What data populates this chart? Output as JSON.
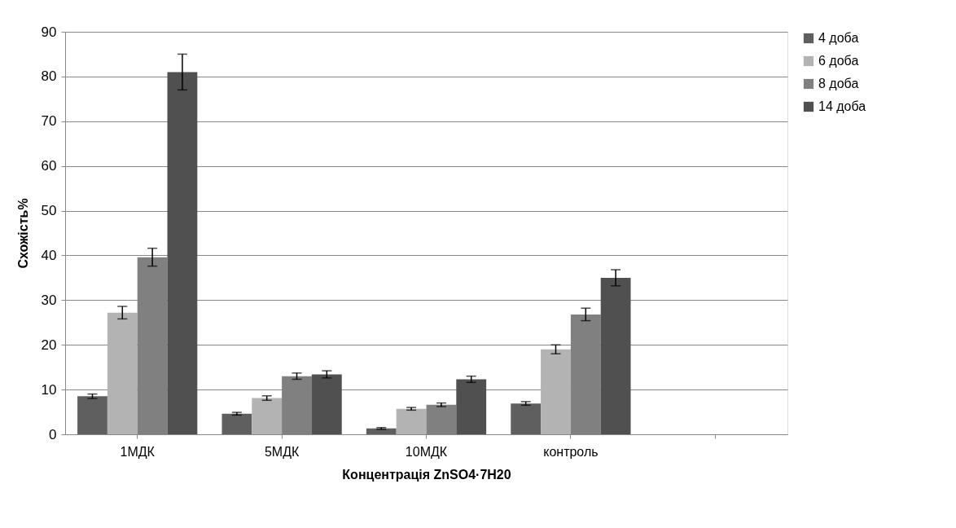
{
  "chart_data": {
    "type": "bar",
    "xlabel": "Концентрація ZnSO4·7H20",
    "ylabel": "Схожість%",
    "categories": [
      "1МДК",
      "5МДК",
      "10МДК",
      "контроль",
      null
    ],
    "series": [
      {
        "name": "4 доба",
        "color": "#5f5f5f",
        "values": [
          8.5,
          4.6,
          1.3,
          6.9,
          null
        ],
        "errors": [
          0.5,
          0.3,
          0.2,
          0.4,
          null
        ]
      },
      {
        "name": "6 доба",
        "color": "#b3b3b3",
        "values": [
          27.2,
          8.1,
          5.7,
          19.0,
          null
        ],
        "errors": [
          1.4,
          0.5,
          0.3,
          1.0,
          null
        ]
      },
      {
        "name": "8 доба",
        "color": "#808080",
        "values": [
          39.6,
          13.0,
          6.6,
          26.8,
          null
        ],
        "errors": [
          2.0,
          0.7,
          0.4,
          1.4,
          null
        ]
      },
      {
        "name": "14 доба",
        "color": "#505050",
        "values": [
          81.0,
          13.4,
          12.3,
          35.0,
          null
        ],
        "errors": [
          4.0,
          0.8,
          0.7,
          1.8,
          null
        ]
      }
    ],
    "ylim": [
      0,
      90
    ],
    "yticks": [
      0,
      10,
      20,
      30,
      40,
      50,
      60,
      70,
      80,
      90
    ],
    "grid": "y",
    "legend": "right"
  }
}
